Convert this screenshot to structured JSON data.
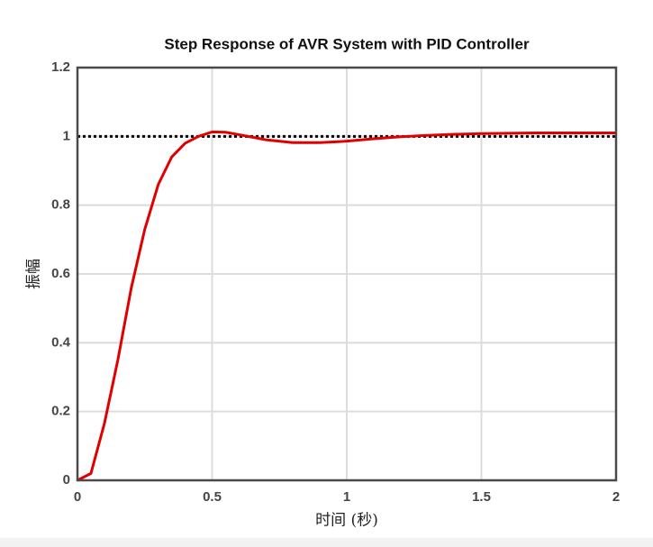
{
  "chart_data": {
    "type": "line",
    "title": "Step Response of AVR System with PID Controller",
    "x_label": "时间 (秒)",
    "y_label": "振幅",
    "x": [
      0,
      0.05,
      0.1,
      0.15,
      0.2,
      0.25,
      0.3,
      0.35,
      0.4,
      0.45,
      0.5,
      0.55,
      0.6,
      0.7,
      0.8,
      0.9,
      1.0,
      1.1,
      1.2,
      1.3,
      1.4,
      1.5,
      1.6,
      1.7,
      1.8,
      1.9,
      2.0
    ],
    "series": [
      {
        "color": "#e00000",
        "values": [
          0,
          0.02,
          0.165,
          0.35,
          0.56,
          0.73,
          0.86,
          0.94,
          0.98,
          1.0,
          1.013,
          1.012,
          1.005,
          0.99,
          0.982,
          0.982,
          0.986,
          0.993,
          0.999,
          1.003,
          1.006,
          1.008,
          1.009,
          1.01,
          1.01,
          1.01,
          1.01
        ]
      }
    ],
    "reference_line": {
      "value": 1,
      "color": "#000000"
    },
    "xlim": [
      0,
      2
    ],
    "xticks": [
      0,
      0.5,
      1,
      1.5,
      2
    ],
    "ylim": [
      0,
      1.2
    ],
    "yticks": [
      0,
      0.2,
      0.4,
      0.6,
      0.8,
      1,
      1.2
    ],
    "grid": true
  }
}
